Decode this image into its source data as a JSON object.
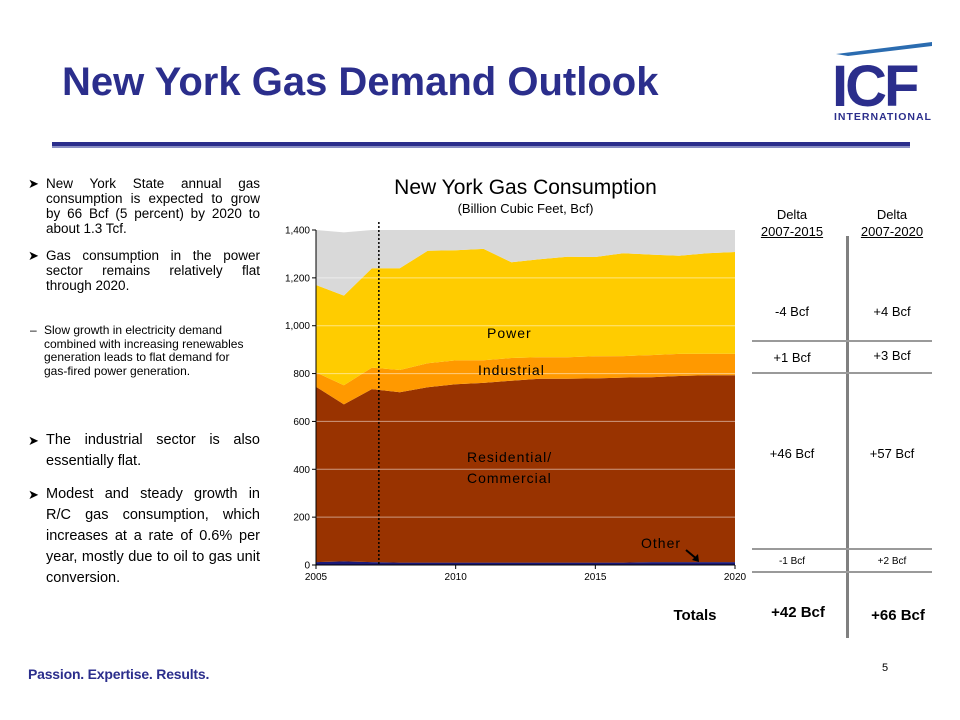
{
  "slide": {
    "title": "New York Gas Demand Outlook",
    "footer": "Passion. Expertise. Results.",
    "page_number": "5",
    "logo": {
      "main": "ICF",
      "sub": "INTERNATIONAL"
    }
  },
  "bullets": [
    {
      "text": "New York State annual gas consumption is expected to grow by 66 Bcf (5 percent) by 2020 to about 1.3 Tcf."
    },
    {
      "text": "Gas consumption in the power sector remains relatively flat through 2020."
    },
    {
      "text": "The industrial sector is also essentially flat."
    },
    {
      "text": "Modest and steady growth in R/C gas consumption, which increases at a rate of 0.6% per year, mostly due to oil to gas unit conversion."
    }
  ],
  "sub_bullet": {
    "text": "Slow growth in electricity demand combined with increasing renewables generation leads to flat demand for gas-fired power generation."
  },
  "chart_data": {
    "type": "area",
    "stacked": true,
    "title": "New York Gas Consumption",
    "subtitle": "(Billion Cubic Feet, Bcf)",
    "x": [
      2005,
      2006,
      2007,
      2008,
      2009,
      2010,
      2011,
      2012,
      2013,
      2014,
      2015,
      2016,
      2017,
      2018,
      2019,
      2020
    ],
    "series": [
      {
        "name": "Other",
        "color": "#1a1a7a",
        "values": [
          12,
          15,
          12,
          10,
          10,
          10,
          10,
          10,
          10,
          10,
          10,
          10,
          12,
          12,
          12,
          12
        ]
      },
      {
        "name": "Residential/ Commercial",
        "color": "#993300",
        "values": [
          733,
          656,
          723,
          712,
          733,
          745,
          751,
          760,
          768,
          768,
          770,
          773,
          773,
          778,
          781,
          781
        ]
      },
      {
        "name": "Industrial",
        "color": "#ff9900",
        "values": [
          60,
          80,
          90,
          93,
          100,
          100,
          95,
          95,
          90,
          90,
          92,
          90,
          92,
          92,
          90,
          90
        ]
      },
      {
        "name": "Power",
        "color": "#ffcc00",
        "values": [
          365,
          375,
          415,
          425,
          470,
          460,
          465,
          400,
          410,
          420,
          415,
          430,
          420,
          410,
          420,
          425
        ]
      },
      {
        "name": "",
        "color": "#d9d9d9",
        "values": [
          230,
          264,
          160,
          160,
          87,
          85,
          79,
          135,
          122,
          112,
          113,
          97,
          103,
          108,
          97,
          92
        ]
      }
    ],
    "xlim": [
      2005,
      2020
    ],
    "ylim": [
      0,
      1400
    ],
    "xticks": [
      "2005",
      "2010",
      "2015",
      "2020"
    ],
    "yticks": [
      "0",
      "200",
      "400",
      "600",
      "800",
      "1,000",
      "1,200",
      "1,400"
    ],
    "marker_line_x": 2007.25,
    "gridlines": true,
    "labels": {
      "power": "Power",
      "industrial": "Industrial",
      "rc1": "Residential/",
      "rc2": "Commercial",
      "other": "Other"
    }
  },
  "delta_table": {
    "col1_header": [
      "Delta",
      "2007-2015"
    ],
    "col2_header": [
      "Delta",
      "2007-2020"
    ],
    "rows": [
      {
        "c1": "-4 Bcf",
        "c2": "+4 Bcf"
      },
      {
        "c1": "+1 Bcf",
        "c2": "+3 Bcf"
      },
      {
        "c1": "+46 Bcf",
        "c2": "+57 Bcf"
      },
      {
        "c1": "-1 Bcf",
        "c2": "+2 Bcf"
      }
    ],
    "totals_label": "Totals",
    "totals": {
      "c1": "+42 Bcf",
      "c2": "+66 Bcf"
    }
  }
}
